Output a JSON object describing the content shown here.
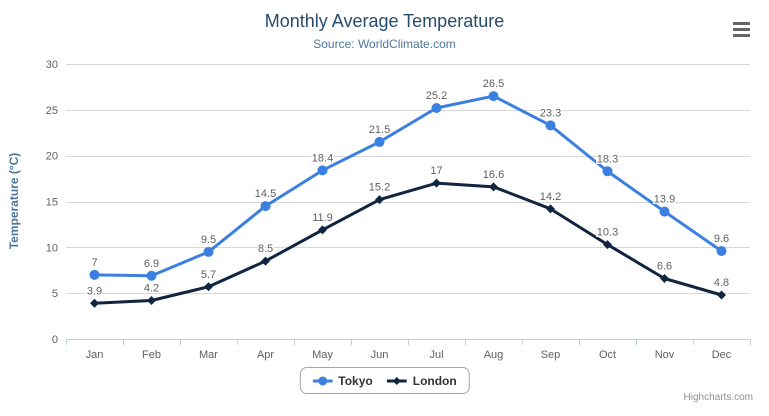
{
  "header": {
    "title": "Monthly Average Temperature",
    "subtitle": "Source: WorldClimate.com"
  },
  "exporting": {
    "menu_icon": "hamburger-icon"
  },
  "credits": {
    "label": "Highcharts.com"
  },
  "colors": {
    "title": "#274b6d",
    "subtitle": "#4d759e",
    "axis_title": "#4d759e",
    "axis_labels": "#606060",
    "data_labels": "#606060",
    "gridline": "#d8d8d8",
    "axis_line": "#c0d0e0",
    "legend_text": "#333333",
    "credits_text": "#909090",
    "series_tokyo": "#3b80e0",
    "series_london": "#10253f"
  },
  "chart_data": {
    "type": "line",
    "title": "Monthly Average Temperature",
    "subtitle": "Source: WorldClimate.com",
    "categories": [
      "Jan",
      "Feb",
      "Mar",
      "Apr",
      "May",
      "Jun",
      "Jul",
      "Aug",
      "Sep",
      "Oct",
      "Nov",
      "Dec"
    ],
    "series": [
      {
        "name": "Tokyo",
        "color": "#3b80e0",
        "marker": "circle",
        "values": [
          7,
          6.9,
          9.5,
          14.5,
          18.4,
          21.5,
          25.2,
          26.5,
          23.3,
          18.3,
          13.9,
          9.6
        ]
      },
      {
        "name": "London",
        "color": "#10253f",
        "marker": "diamond",
        "values": [
          3.9,
          4.2,
          5.7,
          8.5,
          11.9,
          15.2,
          17,
          16.6,
          14.2,
          10.3,
          6.6,
          4.8
        ]
      }
    ],
    "xlabel": "",
    "ylabel": "Temperature (°C)",
    "ylim": [
      0,
      30
    ],
    "ytick_interval": 5,
    "grid": true,
    "data_labels": true,
    "legend_position": "bottom-center"
  }
}
